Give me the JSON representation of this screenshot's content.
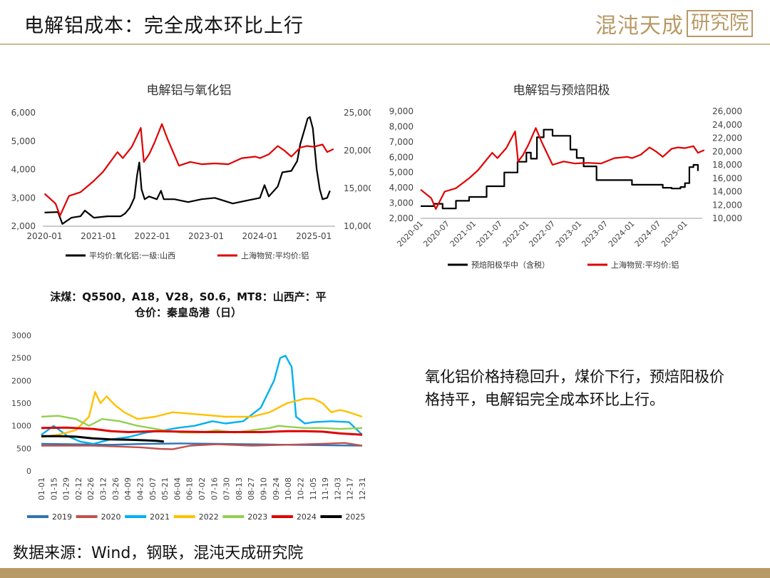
{
  "header": {
    "title": "电解铝成本：完全成本环比上行",
    "logo_brand": "混沌天成",
    "logo_box": "研究院"
  },
  "comment": "氧化铝价格持稳回升，煤价下行，预焙阳极价格持平，电解铝完全成本环比上行。",
  "source": "数据来源：Wind，钢联，混沌天成研究院",
  "chart_data": [
    {
      "id": "alumina",
      "type": "line",
      "title": "电解铝与氧化铝",
      "x_ticks": [
        "2020-01",
        "2021-01",
        "2022-01",
        "2023-01",
        "2024-01",
        "2025-01"
      ],
      "y_left": {
        "lim": [
          2000,
          6000
        ],
        "ticks": [
          "2,000",
          "3,000",
          "4,000",
          "5,000",
          "6,000"
        ]
      },
      "y_right": {
        "lim": [
          10000,
          25000
        ],
        "ticks": [
          "10,000",
          "15,000",
          "20,000",
          "25,000"
        ]
      },
      "series": [
        {
          "name": "平均价:氧化铝:一级:山西",
          "axis": "left",
          "color": "#000000",
          "x": [
            "2020-01-01",
            "2020-04-01",
            "2020-05-01",
            "2020-07-01",
            "2020-09-01",
            "2020-10-01",
            "2020-12-01",
            "2021-03-01",
            "2021-06-01",
            "2021-07-01",
            "2021-08-01",
            "2021-09-01",
            "2021-09-20",
            "2021-10-05",
            "2021-10-20",
            "2021-11-10",
            "2021-12-10",
            "2022-02-01",
            "2022-03-01",
            "2022-03-20",
            "2022-06-01",
            "2022-09-01",
            "2022-12-01",
            "2023-03-01",
            "2023-07-01",
            "2023-10-01",
            "2024-01-01",
            "2024-02-01",
            "2024-03-01",
            "2024-05-01",
            "2024-06-01",
            "2024-08-01",
            "2024-09-10",
            "2024-10-01",
            "2024-11-01",
            "2024-11-20",
            "2024-12-05",
            "2024-12-25",
            "2025-01-20",
            "2025-02-10",
            "2025-03-01",
            "2025-04-01",
            "2025-04-20"
          ],
          "y": [
            2480,
            2500,
            2080,
            2300,
            2350,
            2550,
            2300,
            2350,
            2350,
            2450,
            2650,
            3000,
            3800,
            4250,
            3300,
            2950,
            3050,
            2950,
            3250,
            2950,
            2950,
            2850,
            2950,
            3000,
            2800,
            2900,
            3000,
            3450,
            3050,
            3400,
            3900,
            3950,
            4300,
            4900,
            5450,
            5800,
            5850,
            5450,
            4000,
            3300,
            2950,
            3000,
            3250
          ]
        },
        {
          "name": "上海物贸:平均价:铝",
          "axis": "right",
          "color": "#e00000",
          "x": [
            "2020-01-01",
            "2020-03-15",
            "2020-04-15",
            "2020-06-15",
            "2020-09-01",
            "2020-12-01",
            "2021-02-01",
            "2021-05-10",
            "2021-06-15",
            "2021-08-15",
            "2021-10-15",
            "2021-11-05",
            "2021-12-10",
            "2022-01-15",
            "2022-03-07",
            "2022-04-15",
            "2022-07-01",
            "2022-09-15",
            "2022-12-01",
            "2023-03-01",
            "2023-06-01",
            "2023-09-01",
            "2023-12-01",
            "2024-01-01",
            "2024-03-01",
            "2024-05-01",
            "2024-06-15",
            "2024-08-01",
            "2024-10-01",
            "2024-11-15",
            "2025-01-01",
            "2025-03-01",
            "2025-04-01",
            "2025-05-15"
          ],
          "y": [
            14300,
            13000,
            11400,
            14000,
            14500,
            16000,
            17200,
            19800,
            19000,
            20500,
            23000,
            18500,
            19500,
            21000,
            23500,
            21500,
            18000,
            18500,
            18200,
            18300,
            18200,
            19000,
            19200,
            19000,
            19500,
            20600,
            20000,
            19200,
            20400,
            20600,
            20500,
            20800,
            19800,
            20200
          ]
        }
      ]
    },
    {
      "id": "anode",
      "type": "line",
      "title": "电解铝与预焙阳极",
      "x_ticks": [
        "2020-01",
        "2020-07",
        "2021-01",
        "2021-07",
        "2022-01",
        "2022-07",
        "2023-01",
        "2023-07",
        "2024-01",
        "2024-07",
        "2025-01"
      ],
      "y_left": {
        "lim": [
          2000,
          9000
        ],
        "ticks": [
          "2,000",
          "3,000",
          "4,000",
          "5,000",
          "6,000",
          "7,000",
          "8,000",
          "9,000"
        ]
      },
      "y_right": {
        "lim": [
          10000,
          26000
        ],
        "ticks": [
          "10,000",
          "12,000",
          "14,000",
          "16,000",
          "18,000",
          "20,000",
          "22,000",
          "24,000",
          "26,000"
        ]
      },
      "series": [
        {
          "name": "预焙阳极华中（含税）",
          "axis": "left",
          "color": "#000000",
          "x": [
            "2020-01-01",
            "2020-04-01",
            "2020-06-01",
            "2020-09-01",
            "2020-12-01",
            "2021-04-01",
            "2021-08-01",
            "2021-11-01",
            "2022-01-01",
            "2022-02-01",
            "2022-03-15",
            "2022-05-01",
            "2022-07-01",
            "2022-09-01",
            "2022-11-01",
            "2022-12-15",
            "2023-02-01",
            "2023-04-01",
            "2023-05-01",
            "2023-08-01",
            "2024-01-01",
            "2024-06-01",
            "2024-08-01",
            "2024-10-01",
            "2024-12-01",
            "2025-01-01",
            "2025-02-01",
            "2025-03-01",
            "2025-04-01"
          ],
          "y": [
            2800,
            2950,
            2650,
            3150,
            3400,
            4100,
            5000,
            5700,
            6300,
            5900,
            7300,
            7800,
            7400,
            7400,
            6500,
            5950,
            5400,
            5400,
            4500,
            4500,
            4200,
            4200,
            4000,
            3950,
            4050,
            4300,
            5350,
            5500,
            5100
          ]
        },
        {
          "name": "上海物贸:平均价:铝",
          "axis": "right",
          "color": "#e00000",
          "x": [
            "2020-01-01",
            "2020-03-15",
            "2020-04-15",
            "2020-06-15",
            "2020-09-01",
            "2020-12-01",
            "2021-02-01",
            "2021-05-10",
            "2021-06-15",
            "2021-08-15",
            "2021-10-15",
            "2021-11-05",
            "2021-12-10",
            "2022-01-15",
            "2022-03-07",
            "2022-04-15",
            "2022-07-01",
            "2022-09-15",
            "2022-12-01",
            "2023-03-01",
            "2023-06-01",
            "2023-09-01",
            "2023-12-01",
            "2024-01-01",
            "2024-03-01",
            "2024-05-01",
            "2024-06-15",
            "2024-08-01",
            "2024-10-01",
            "2024-11-15",
            "2025-01-01",
            "2025-03-01",
            "2025-04-01",
            "2025-05-15"
          ],
          "y": [
            14300,
            13000,
            11400,
            14000,
            14500,
            16000,
            17200,
            19800,
            19000,
            20500,
            23000,
            18500,
            19500,
            21000,
            23500,
            21500,
            18000,
            18500,
            18200,
            18300,
            18200,
            19000,
            19200,
            19000,
            19500,
            20600,
            20000,
            19200,
            20400,
            20600,
            20500,
            20800,
            19800,
            20200
          ]
        }
      ]
    },
    {
      "id": "coal",
      "type": "line",
      "title_lines": [
        "沫煤：Q5500，A18，V28，S0.6，MT8：山西产：平",
        "仓价：秦皇岛港（日）"
      ],
      "x_ticks": [
        "01-01",
        "01-15",
        "01-29",
        "02-12",
        "02-26",
        "03-12",
        "03-26",
        "04-09",
        "04-23",
        "05-07",
        "05-21",
        "06-04",
        "06-18",
        "07-02",
        "07-16",
        "07-30",
        "08-13",
        "08-27",
        "09-10",
        "09-24",
        "10-08",
        "10-22",
        "11-05",
        "11-19",
        "12-03",
        "12-17",
        "12-31"
      ],
      "y": {
        "lim": [
          0,
          3000
        ],
        "ticks": [
          "0",
          "500",
          "1000",
          "1500",
          "2000",
          "2500",
          "3000"
        ]
      },
      "series": [
        {
          "name": "2019",
          "color": "#2e75b6",
          "x": [
            1,
            40,
            80,
            120,
            160,
            200,
            240,
            280,
            320,
            365
          ],
          "y": [
            600,
            590,
            580,
            600,
            610,
            600,
            590,
            580,
            570,
            560
          ]
        },
        {
          "name": "2020",
          "color": "#c0504d",
          "x": [
            1,
            30,
            60,
            90,
            115,
            135,
            150,
            170,
            200,
            240,
            280,
            320,
            345,
            365
          ],
          "y": [
            560,
            560,
            560,
            540,
            520,
            490,
            480,
            560,
            590,
            560,
            580,
            600,
            620,
            560
          ]
        },
        {
          "name": "2021",
          "color": "#00b0f0",
          "x": [
            1,
            15,
            30,
            45,
            60,
            80,
            100,
            120,
            140,
            155,
            175,
            195,
            210,
            230,
            250,
            265,
            272,
            278,
            285,
            290,
            300,
            310,
            330,
            350,
            365
          ],
          "y": [
            800,
            1000,
            780,
            650,
            600,
            700,
            750,
            850,
            900,
            950,
            1000,
            1100,
            1050,
            1100,
            1400,
            2000,
            2500,
            2550,
            2300,
            1200,
            1050,
            1080,
            1100,
            1080,
            800
          ]
        },
        {
          "name": "2022",
          "color": "#ffc000",
          "x": [
            1,
            20,
            40,
            55,
            62,
            68,
            75,
            85,
            95,
            110,
            130,
            150,
            180,
            210,
            240,
            260,
            280,
            300,
            310,
            320,
            330,
            340,
            350,
            365
          ],
          "y": [
            750,
            800,
            900,
            1200,
            1750,
            1500,
            1650,
            1450,
            1300,
            1150,
            1200,
            1300,
            1250,
            1200,
            1200,
            1300,
            1500,
            1600,
            1600,
            1500,
            1300,
            1350,
            1300,
            1200
          ]
        },
        {
          "name": "2023",
          "color": "#92d050",
          "x": [
            1,
            20,
            40,
            55,
            70,
            90,
            110,
            125,
            140,
            160,
            180,
            200,
            220,
            240,
            260,
            270,
            280,
            300,
            320,
            340,
            365
          ],
          "y": [
            1200,
            1220,
            1150,
            1000,
            1150,
            1100,
            1000,
            950,
            900,
            850,
            850,
            900,
            850,
            900,
            950,
            1000,
            980,
            950,
            950,
            930,
            950
          ]
        },
        {
          "name": "2024",
          "color": "#e00000",
          "x": [
            1,
            30,
            60,
            80,
            100,
            130,
            160,
            190,
            220,
            250,
            280,
            300,
            320,
            340,
            365
          ],
          "y": [
            950,
            960,
            930,
            880,
            860,
            880,
            870,
            860,
            860,
            860,
            880,
            880,
            870,
            830,
            800
          ]
        },
        {
          "name": "2025",
          "color": "#000000",
          "x": [
            1,
            20,
            40,
            60,
            80,
            100,
            115,
            130,
            140
          ],
          "y": [
            770,
            770,
            760,
            720,
            700,
            690,
            680,
            670,
            650
          ]
        }
      ]
    }
  ]
}
